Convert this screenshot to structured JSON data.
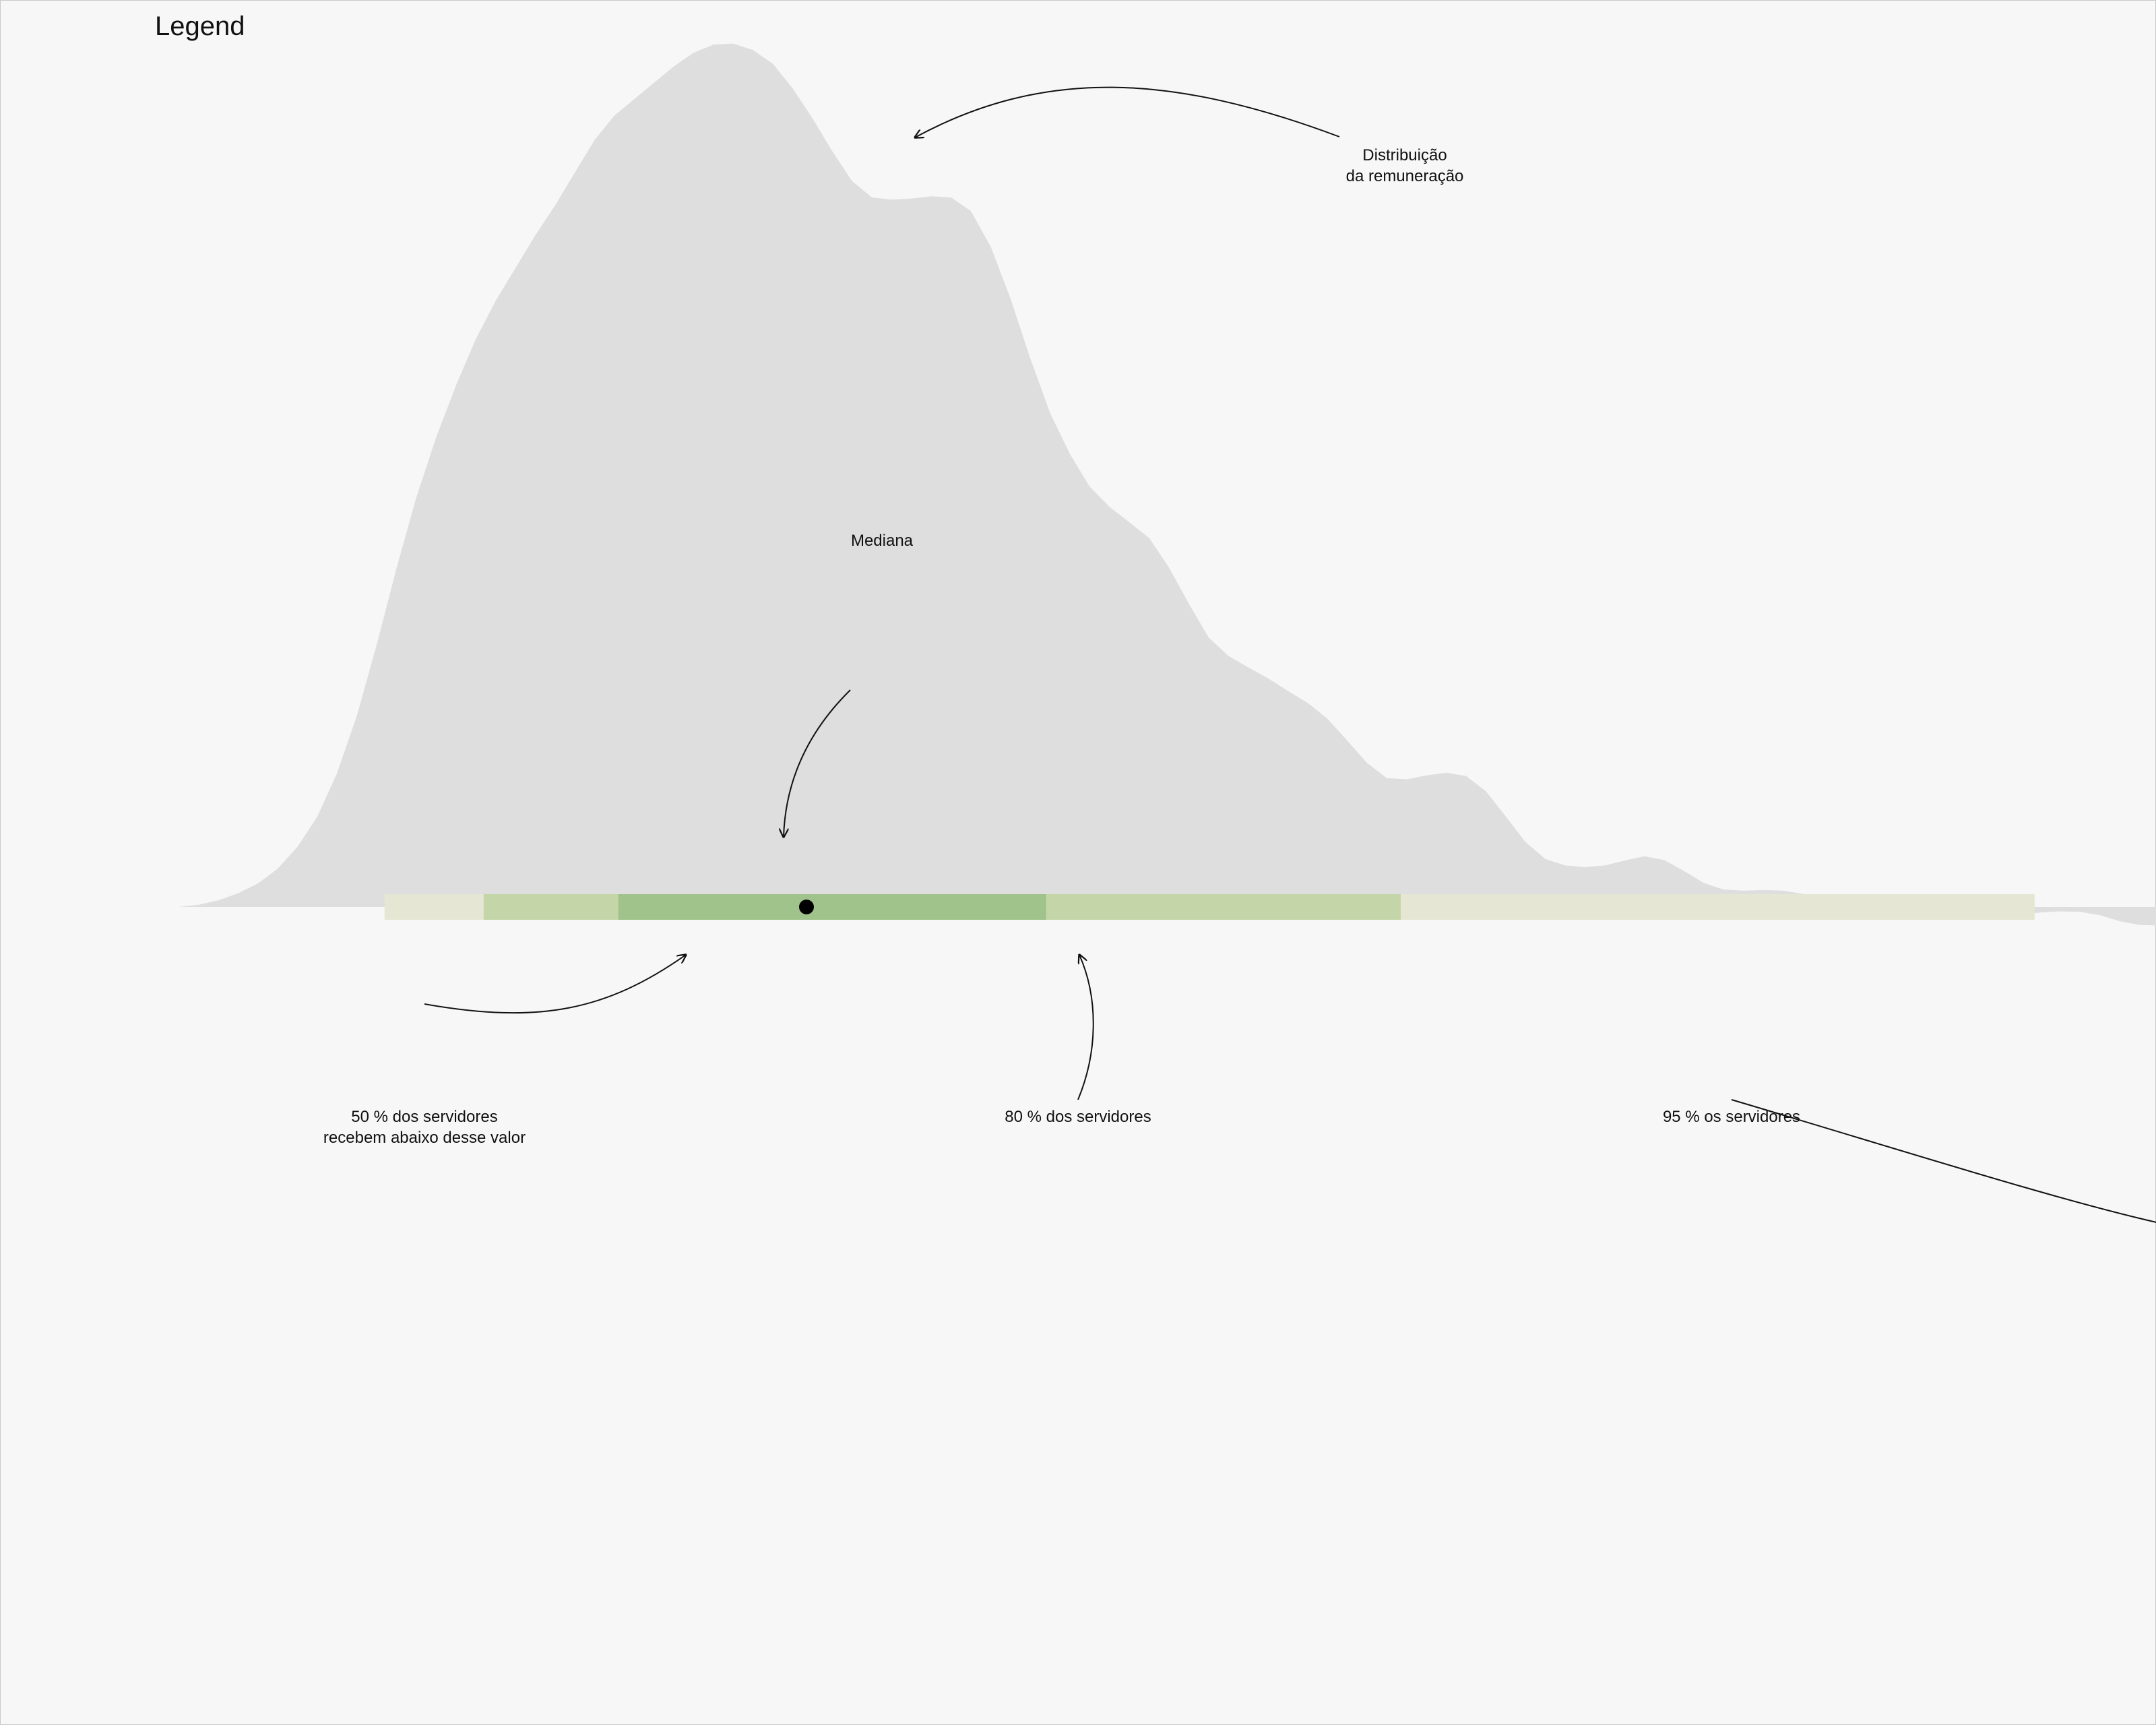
{
  "chart_data": {
    "type": "area",
    "title": "Legend",
    "xlabel": "",
    "ylabel": "",
    "grid": false,
    "density": {
      "x": [
        0,
        1,
        2,
        3,
        4,
        5,
        6,
        7,
        8,
        9,
        10,
        11,
        12,
        13,
        14,
        15,
        16,
        17,
        18,
        19,
        20,
        21,
        22,
        23,
        24,
        25,
        26,
        27,
        28,
        29,
        30,
        31,
        32,
        33,
        34,
        35,
        36,
        37,
        38,
        39,
        40,
        41,
        42,
        43,
        44,
        45,
        46,
        47,
        48,
        49,
        50,
        51,
        52,
        53,
        54,
        55,
        56,
        57,
        58,
        59,
        60,
        61,
        62,
        63,
        64,
        65,
        66,
        67,
        68,
        69,
        70,
        71,
        72,
        73,
        74,
        75,
        76,
        77,
        78,
        79,
        80,
        81,
        82,
        83,
        84,
        85,
        86,
        87,
        88,
        89,
        90,
        91,
        92,
        93,
        94,
        95,
        96,
        97,
        98,
        99,
        100
      ],
      "y": [
        0.0,
        0.4,
        1.2,
        2.5,
        4.3,
        7.0,
        11.0,
        16.5,
        24.5,
        35.0,
        48.0,
        62.0,
        75.0,
        86.0,
        95.5,
        104.0,
        111.0,
        117.0,
        123.0,
        128.5,
        134.5,
        140.5,
        145.0,
        148.0,
        151.0,
        154.0,
        156.5,
        158.0,
        158.2,
        157.0,
        154.5,
        150.0,
        144.5,
        138.5,
        133.0,
        130.0,
        129.6,
        129.8,
        130.2,
        130.0,
        127.5,
        121.0,
        111.5,
        100.5,
        90.5,
        83.0,
        77.0,
        73.3,
        70.5,
        67.6,
        62.2,
        55.6,
        49.4,
        46.0,
        43.9,
        41.9,
        39.6,
        37.4,
        34.5,
        30.5,
        26.4,
        23.6,
        23.4,
        24.1,
        24.6,
        24.0,
        21.2,
        16.6,
        11.9,
        8.8,
        7.6,
        7.3,
        7.6,
        8.5,
        9.3,
        8.6,
        6.6,
        4.4,
        3.2,
        3.0,
        3.1,
        3.0,
        2.4,
        1.2,
        0.2,
        -0.6,
        -0.8,
        -0.8,
        -0.6,
        -0.4,
        -0.2,
        -0.6,
        -1.2,
        -1.4,
        -1.0,
        -0.8,
        -0.9,
        -1.5,
        -2.6,
        -3.3,
        -3.4
      ]
    },
    "intervals": [
      {
        "level": "95%",
        "from": 10.4,
        "to": 93.7,
        "color": "#e6e6d4"
      },
      {
        "level": "80%",
        "from": 15.4,
        "to": 61.7,
        "color": "#c4d6a8"
      },
      {
        "level": "50%",
        "from": 22.2,
        "to": 43.8,
        "color": "#a0c28b"
      }
    ],
    "median": 31.7,
    "colors": {
      "density": "#dedede",
      "median": "#000000",
      "background": "#f7f7f7"
    }
  },
  "annotations": {
    "distribution_line1": "Distribuição",
    "distribution_line2": "da remuneração",
    "median": "Mediana",
    "pct50_line1": "50 % dos servidores",
    "pct50_line2": "recebem abaixo desse valor",
    "pct80": "80 % dos servidores",
    "pct95": "95 % os servidores"
  }
}
